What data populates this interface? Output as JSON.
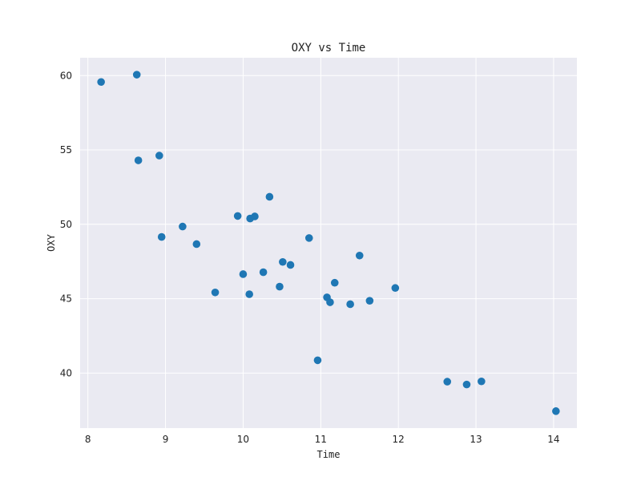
{
  "chart_data": {
    "type": "scatter",
    "title": "OXY vs Time",
    "xlabel": "Time",
    "ylabel": "OXY",
    "xlim": [
      7.9,
      14.3
    ],
    "ylim": [
      36.3,
      61.2
    ],
    "xticks": [
      8,
      9,
      10,
      11,
      12,
      13,
      14
    ],
    "yticks": [
      40,
      45,
      50,
      55,
      60
    ],
    "grid": true,
    "colors": {
      "background": "#eaeaf2",
      "grid": "#ffffff",
      "point": "#1f77b4"
    },
    "points": [
      {
        "x": 8.17,
        "y": 59.57
      },
      {
        "x": 8.63,
        "y": 60.06
      },
      {
        "x": 8.65,
        "y": 54.3
      },
      {
        "x": 8.92,
        "y": 54.62
      },
      {
        "x": 8.95,
        "y": 49.15
      },
      {
        "x": 9.22,
        "y": 49.85
      },
      {
        "x": 9.4,
        "y": 48.67
      },
      {
        "x": 9.64,
        "y": 45.42
      },
      {
        "x": 9.93,
        "y": 50.56
      },
      {
        "x": 10.0,
        "y": 46.65
      },
      {
        "x": 10.08,
        "y": 45.3
      },
      {
        "x": 10.09,
        "y": 50.39
      },
      {
        "x": 10.15,
        "y": 50.53
      },
      {
        "x": 10.26,
        "y": 46.78
      },
      {
        "x": 10.34,
        "y": 51.85
      },
      {
        "x": 10.47,
        "y": 45.81
      },
      {
        "x": 10.51,
        "y": 47.47
      },
      {
        "x": 10.61,
        "y": 47.27
      },
      {
        "x": 10.85,
        "y": 49.08
      },
      {
        "x": 10.96,
        "y": 40.86
      },
      {
        "x": 11.08,
        "y": 45.09
      },
      {
        "x": 11.12,
        "y": 44.76
      },
      {
        "x": 11.18,
        "y": 46.07
      },
      {
        "x": 11.38,
        "y": 44.63
      },
      {
        "x": 11.5,
        "y": 47.9
      },
      {
        "x": 11.63,
        "y": 44.86
      },
      {
        "x": 11.96,
        "y": 45.72
      },
      {
        "x": 12.63,
        "y": 39.42
      },
      {
        "x": 12.88,
        "y": 39.23
      },
      {
        "x": 13.07,
        "y": 39.44
      },
      {
        "x": 14.03,
        "y": 37.44
      }
    ]
  }
}
